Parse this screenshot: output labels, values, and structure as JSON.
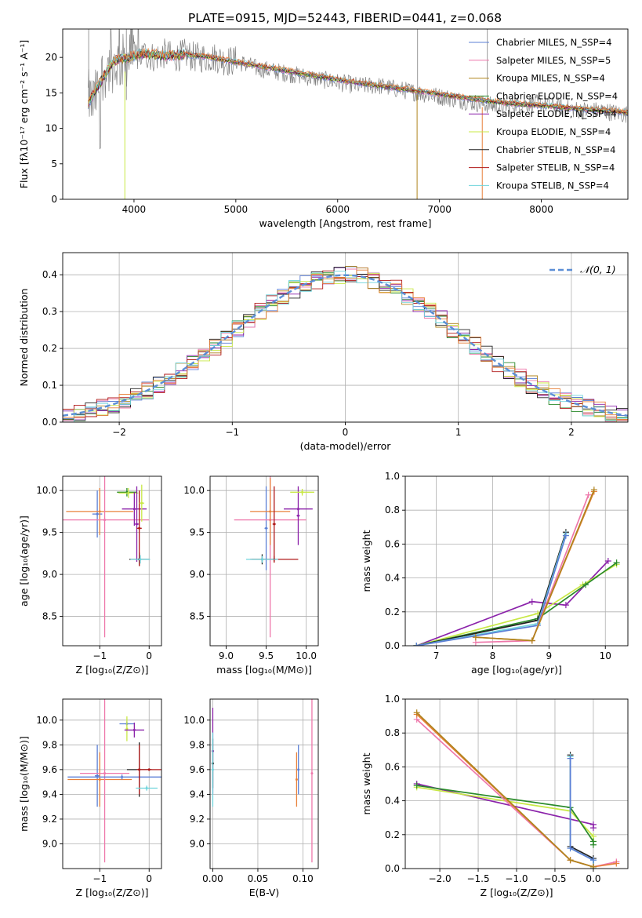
{
  "title": "PLATE=0915, MJD=52443, FIBERID=0441, z=0.068",
  "colors": [
    "#5b7fd6",
    "#ee77aa",
    "#b0841e",
    "#2a8a2a",
    "#8b22aa",
    "#c8e845",
    "#222222",
    "#b01818",
    "#6fd4dc",
    "#e8803a",
    "#808080"
  ],
  "chart_data": [
    {
      "id": "spectrum",
      "type": "line",
      "xlabel": "wavelength [Angstrom, rest frame]",
      "ylabel": "Flux [fλ10⁻¹⁷ erg cm⁻² s⁻¹ A⁻¹]",
      "xlim": [
        3300,
        8850
      ],
      "ylim": [
        0,
        24
      ],
      "xticks": [
        4000,
        5000,
        6000,
        7000,
        8000
      ],
      "yticks": [
        0,
        5,
        10,
        15,
        20
      ],
      "legend": [
        "Chabrier MILES, N_SSP=4",
        "Salpeter MILES, N_SSP=5",
        "Kroupa MILES, N_SSP=4",
        "Chabrier ELODIE, N_SSP=4",
        "Salpeter ELODIE, N_SSP=4",
        "Kroupa ELODIE, N_SSP=4",
        "Chabrier STELIB, N_SSP=4",
        "Salpeter STELIB, N_SSP=4",
        "Kroupa STELIB, N_SSP=4"
      ],
      "data_x": [
        3550,
        3600,
        3700,
        3800,
        3900,
        4000,
        4100,
        4200,
        4300,
        4400,
        4500,
        4600,
        4700,
        4800,
        4900,
        5000,
        5200,
        5400,
        5600,
        5800,
        6000,
        6200,
        6400,
        6600,
        6800,
        7000,
        7200,
        7400,
        7600,
        7800,
        8000,
        8200,
        8400,
        8600,
        8800
      ],
      "data_y": [
        14.5,
        13.5,
        18,
        19,
        19.5,
        20,
        20.5,
        20,
        20.5,
        20,
        20.5,
        20,
        20,
        20,
        19.5,
        19.5,
        18.5,
        18,
        17.5,
        17,
        16.5,
        16,
        16,
        15.5,
        15,
        14.5,
        14,
        13.5,
        13,
        13.5,
        13.5,
        13,
        12.5,
        12.5,
        12
      ],
      "model_x": [
        3550,
        3650,
        3800,
        3950,
        4100,
        4300,
        4500,
        4700,
        4900,
        5100,
        5300,
        5500,
        5700,
        5900,
        6100,
        6300,
        6500,
        6700,
        6900,
        7100,
        7300,
        7500,
        7700,
        7900,
        8100,
        8300,
        8500,
        8700,
        8850
      ],
      "model_y": [
        13.5,
        16,
        19.5,
        20,
        20.5,
        20.2,
        20.4,
        20.1,
        19.6,
        19.1,
        18.6,
        18.1,
        17.6,
        17.1,
        16.6,
        16.2,
        15.8,
        15.4,
        15,
        14.6,
        14.2,
        13.8,
        13.5,
        13.3,
        13.1,
        12.8,
        12.6,
        12.4,
        12.2
      ]
    },
    {
      "id": "residuals",
      "type": "line",
      "xlabel": "(data-model)/error",
      "ylabel": "Normed distribution",
      "xlim": [
        -2.5,
        2.5
      ],
      "ylim": [
        0,
        0.46
      ],
      "xticks": [
        -2,
        -1,
        0,
        1,
        2
      ],
      "yticks": [
        0.0,
        0.1,
        0.2,
        0.3,
        0.4
      ],
      "legend": [
        "𝒩(0, 1)"
      ],
      "gaussian_mu": 0,
      "gaussian_sigma": 1
    },
    {
      "id": "age-vs-Z",
      "type": "scatter",
      "xlabel": "Z [log₁₀(Z/Z⊙)]",
      "ylabel": "age  [log₁₀(age/yr)]",
      "xlim": [
        -1.75,
        0.25
      ],
      "ylim": [
        8.15,
        10.17
      ],
      "xticks": [
        -1,
        0
      ],
      "yticks": [
        8.5,
        9.0,
        9.5,
        10.0
      ],
      "points": [
        {
          "x": -1.05,
          "y": 9.72,
          "xerr": 0.1,
          "yerr": 0.28,
          "c": 0
        },
        {
          "x": -1.0,
          "y": 9.75,
          "xerr": 0.68,
          "yerr": 0.28,
          "c": 9
        },
        {
          "x": -0.9,
          "y": 9.65,
          "xerr": 0.9,
          "yerr": 1.4,
          "c": 1
        },
        {
          "x": -0.45,
          "y": 9.98,
          "xerr": 0.2,
          "yerr": 0.05,
          "c": 3
        },
        {
          "x": -0.42,
          "y": 9.97,
          "xerr": 0.2,
          "yerr": 0.06,
          "c": 5
        },
        {
          "x": -0.3,
          "y": 9.78,
          "xerr": 0.25,
          "yerr": 0.2,
          "c": 4
        },
        {
          "x": -0.25,
          "y": 9.6,
          "xerr": 0.05,
          "yerr": 0.45,
          "c": 4
        },
        {
          "x": -0.2,
          "y": 9.18,
          "xerr": 0.2,
          "yerr": 0.08,
          "c": 6
        },
        {
          "x": -0.2,
          "y": 9.55,
          "xerr": 0.05,
          "yerr": 0.45,
          "c": 7
        },
        {
          "x": -0.18,
          "y": 9.18,
          "xerr": 0.2,
          "yerr": 0.05,
          "c": 8
        },
        {
          "x": -0.15,
          "y": 9.85,
          "xerr": 0.05,
          "yerr": 0.22,
          "c": 5
        }
      ]
    },
    {
      "id": "age-vs-mass",
      "type": "scatter",
      "xlabel": "mass [log₁₀(M/M⊙)]",
      "ylabel": "",
      "xlim": [
        8.8,
        10.15
      ],
      "ylim": [
        8.15,
        10.17
      ],
      "xticks": [
        9.0,
        9.5,
        10.0
      ],
      "yticks": [
        8.5,
        9.0,
        9.5,
        10.0
      ],
      "points": [
        {
          "x": 9.5,
          "y": 9.55,
          "xerr": 0.02,
          "yerr": 0.5,
          "c": 0
        },
        {
          "x": 9.45,
          "y": 9.18,
          "xerr": 0.13,
          "yerr": 0.06,
          "c": 6
        },
        {
          "x": 9.55,
          "y": 9.65,
          "xerr": 0.45,
          "yerr": 1.4,
          "c": 1
        },
        {
          "x": 9.55,
          "y": 9.75,
          "xerr": 0.25,
          "yerr": 0.4,
          "c": 9
        },
        {
          "x": 9.6,
          "y": 9.18,
          "xerr": 0.3,
          "yerr": 0.04,
          "c": 7
        },
        {
          "x": 9.6,
          "y": 9.6,
          "xerr": 0.02,
          "yerr": 0.45,
          "c": 7
        },
        {
          "x": 9.9,
          "y": 9.78,
          "xerr": 0.18,
          "yerr": 0.02,
          "c": 4
        },
        {
          "x": 9.9,
          "y": 9.7,
          "xerr": 0.02,
          "yerr": 0.35,
          "c": 4
        },
        {
          "x": 9.95,
          "y": 9.98,
          "xerr": 0.15,
          "yerr": 0.04,
          "c": 5
        },
        {
          "x": 9.45,
          "y": 9.18,
          "xerr": 0.2,
          "yerr": 0.04,
          "c": 8
        }
      ]
    },
    {
      "id": "massweight-vs-age",
      "type": "line",
      "xlabel": "age  [log₁₀(age/yr)]",
      "ylabel": "mass weight",
      "xlim": [
        6.45,
        10.4
      ],
      "ylim": [
        0,
        1.0
      ],
      "xticks": [
        7,
        8,
        9,
        10
      ],
      "yticks": [
        0.0,
        0.2,
        0.4,
        0.6,
        0.8,
        1.0
      ],
      "series": [
        {
          "c": 4,
          "x": [
            6.65,
            8.7,
            9.3,
            10.05
          ],
          "y": [
            0.0,
            0.26,
            0.24,
            0.5
          ]
        },
        {
          "c": 5,
          "x": [
            6.65,
            8.8,
            9.6,
            10.2
          ],
          "y": [
            0.0,
            0.19,
            0.36,
            0.48
          ]
        },
        {
          "c": 3,
          "x": [
            6.65,
            8.8,
            9.65,
            10.2
          ],
          "y": [
            0.0,
            0.16,
            0.36,
            0.49
          ]
        },
        {
          "c": 6,
          "x": [
            6.65,
            8.8,
            9.3
          ],
          "y": [
            0.0,
            0.15,
            0.67
          ]
        },
        {
          "c": 8,
          "x": [
            6.65,
            8.8,
            9.3
          ],
          "y": [
            0.0,
            0.13,
            0.66
          ]
        },
        {
          "c": 0,
          "x": [
            6.65,
            8.8,
            9.3
          ],
          "y": [
            0.0,
            0.12,
            0.65
          ]
        },
        {
          "c": 1,
          "x": [
            7.7,
            8.7,
            9.7
          ],
          "y": [
            0.02,
            0.03,
            0.89
          ]
        },
        {
          "c": 9,
          "x": [
            7.7,
            8.7,
            9.8
          ],
          "y": [
            0.05,
            0.03,
            0.91
          ]
        },
        {
          "c": 2,
          "x": [
            7.7,
            8.7,
            9.8
          ],
          "y": [
            0.05,
            0.03,
            0.92
          ]
        }
      ]
    },
    {
      "id": "mass-vs-Z",
      "type": "scatter",
      "xlabel": "Z [log₁₀(Z/Z⊙)]",
      "ylabel": "mass [log₁₀(M/M⊙)]",
      "xlim": [
        -1.75,
        0.25
      ],
      "ylim": [
        8.8,
        10.17
      ],
      "xticks": [
        -1,
        0
      ],
      "yticks": [
        9.0,
        9.2,
        9.4,
        9.6,
        9.8,
        10.0
      ],
      "points": [
        {
          "x": -1.05,
          "y": 9.55,
          "xerr": 0.05,
          "yerr": 0.25,
          "c": 0
        },
        {
          "x": -1.0,
          "y": 9.52,
          "xerr": 0.65,
          "yerr": 0.22,
          "c": 9
        },
        {
          "x": -0.9,
          "y": 9.57,
          "xerr": 0.5,
          "yerr": 0.72,
          "c": 1
        },
        {
          "x": -0.55,
          "y": 9.54,
          "xerr": 1.1,
          "yerr": 0.02,
          "c": 0
        },
        {
          "x": -0.45,
          "y": 9.97,
          "xerr": 0.15,
          "yerr": 0.02,
          "c": 0
        },
        {
          "x": -0.45,
          "y": 9.93,
          "xerr": 0.02,
          "yerr": 0.1,
          "c": 5
        },
        {
          "x": -0.3,
          "y": 9.92,
          "xerr": 0.2,
          "yerr": 0.06,
          "c": 4
        },
        {
          "x": -0.2,
          "y": 9.6,
          "xerr": 0.25,
          "yerr": 0.22,
          "c": 6
        },
        {
          "x": -0.2,
          "y": 9.6,
          "xerr": 0.02,
          "yerr": 0.2,
          "c": 7
        },
        {
          "x": 0.0,
          "y": 9.6,
          "xerr": 0.25,
          "yerr": 0.01,
          "c": 7
        },
        {
          "x": -0.05,
          "y": 9.45,
          "xerr": 0.22,
          "yerr": 0.02,
          "c": 8
        }
      ]
    },
    {
      "id": "mass-vs-ebv",
      "type": "scatter",
      "xlabel": "E(B-V)",
      "ylabel": "",
      "xlim": [
        -0.003,
        0.117
      ],
      "ylim": [
        8.8,
        10.17
      ],
      "xticks": [
        0.0,
        0.05,
        0.1
      ],
      "yticks": [
        9.0,
        9.2,
        9.4,
        9.6,
        9.8,
        10.0
      ],
      "points": [
        {
          "x": 0.0,
          "y": 9.75,
          "xerr": 0.0,
          "yerr": 0.35,
          "c": 4
        },
        {
          "x": 0.0,
          "y": 9.65,
          "xerr": 0.0,
          "yerr": 0.2,
          "c": 6
        },
        {
          "x": 0.0,
          "y": 9.6,
          "xerr": 0.0,
          "yerr": 0.3,
          "c": 8
        },
        {
          "x": 0.093,
          "y": 9.52,
          "xerr": 0.0,
          "yerr": 0.22,
          "c": 9
        },
        {
          "x": 0.095,
          "y": 9.6,
          "xerr": 0.0,
          "yerr": 0.2,
          "c": 0
        },
        {
          "x": 0.11,
          "y": 9.57,
          "xerr": 0.0,
          "yerr": 0.72,
          "c": 1
        }
      ]
    },
    {
      "id": "massweight-vs-Z",
      "type": "line",
      "xlabel": "Z [log₁₀(Z/Z⊙)]",
      "ylabel": "mass weight",
      "xlim": [
        -2.45,
        0.45
      ],
      "ylim": [
        0,
        1.0
      ],
      "xticks": [
        -2.0,
        -1.5,
        -1.0,
        -0.5,
        0.0
      ],
      "yticks": [
        0.0,
        0.2,
        0.4,
        0.6,
        0.8,
        1.0
      ],
      "series": [
        {
          "c": 4,
          "x": [
            -2.3,
            0.0,
            0.0
          ],
          "y": [
            0.5,
            0.26,
            0.24
          ]
        },
        {
          "c": 5,
          "x": [
            -2.3,
            -0.3,
            0.0,
            0.0
          ],
          "y": [
            0.48,
            0.34,
            0.19,
            0.16
          ]
        },
        {
          "c": 3,
          "x": [
            -2.3,
            -0.3,
            0.0,
            0.0
          ],
          "y": [
            0.49,
            0.36,
            0.16,
            0.14
          ]
        },
        {
          "c": 6,
          "x": [
            -0.3,
            -0.3,
            0.0,
            0.0
          ],
          "y": [
            0.67,
            0.13,
            0.06,
            0.0
          ]
        },
        {
          "c": 8,
          "x": [
            -0.3,
            -0.3,
            0.0,
            0.0
          ],
          "y": [
            0.66,
            0.12,
            0.05,
            0.0
          ]
        },
        {
          "c": 0,
          "x": [
            -0.3,
            -0.3,
            0.0
          ],
          "y": [
            0.65,
            0.12,
            0.05
          ]
        },
        {
          "c": 1,
          "x": [
            -2.3,
            -0.3,
            0.0,
            0.3
          ],
          "y": [
            0.88,
            0.05,
            0.01,
            0.04
          ]
        },
        {
          "c": 9,
          "x": [
            -2.3,
            -0.3,
            0.0,
            0.3
          ],
          "y": [
            0.91,
            0.05,
            0.01,
            0.03
          ]
        },
        {
          "c": 2,
          "x": [
            -2.3,
            -0.3,
            0.0
          ],
          "y": [
            0.92,
            0.05,
            0.01
          ]
        }
      ]
    }
  ]
}
